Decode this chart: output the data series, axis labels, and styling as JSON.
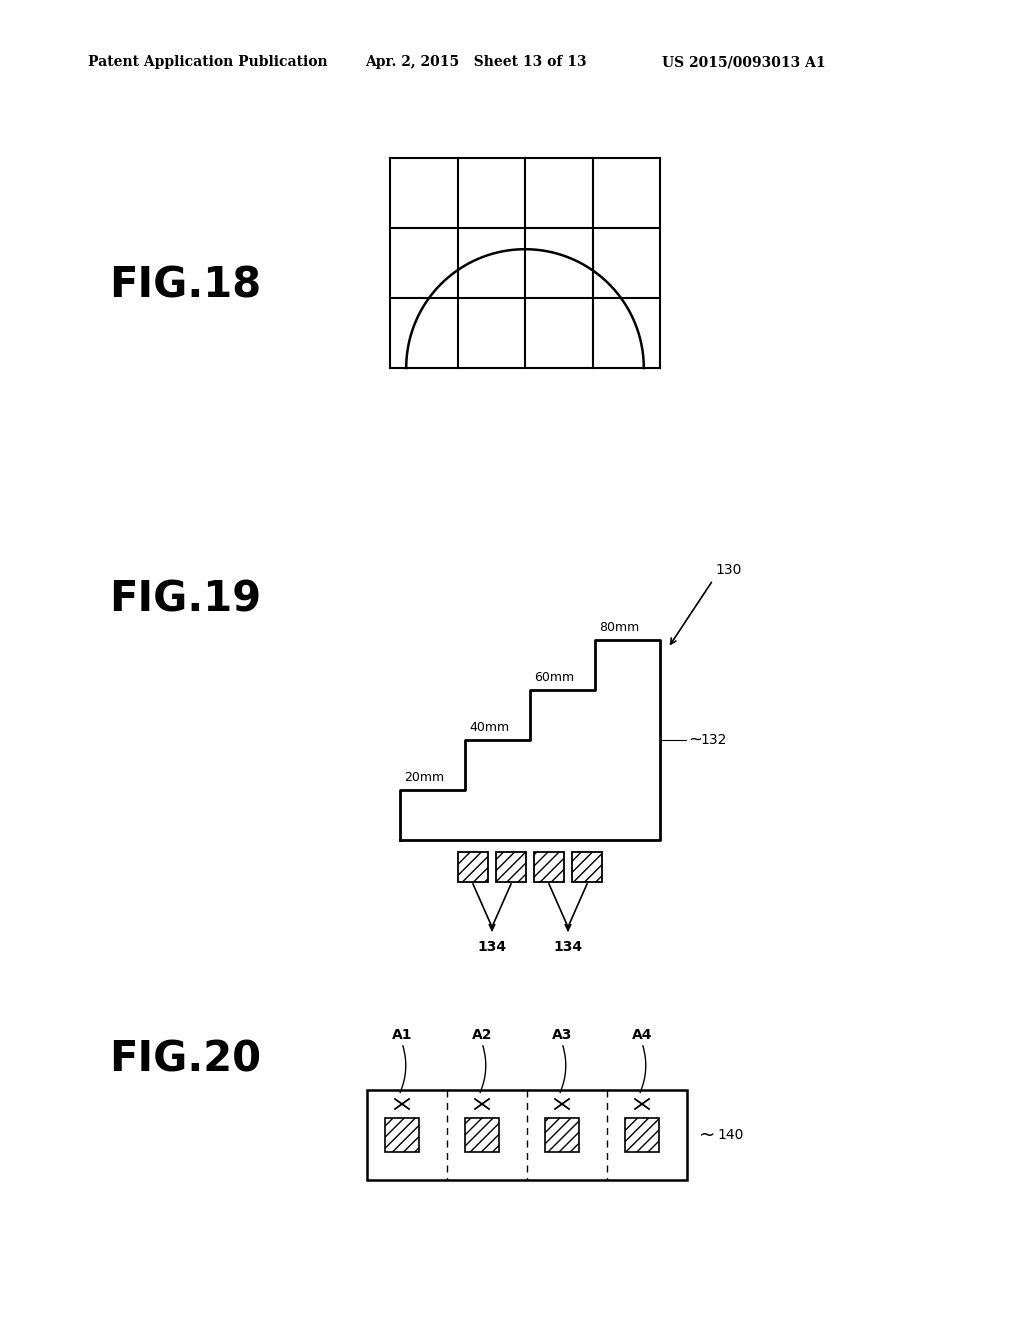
{
  "background": "#ffffff",
  "header_left": "Patent Application Publication",
  "header_mid": "Apr. 2, 2015   Sheet 13 of 13",
  "header_right": "US 2015/0093013 A1",
  "fig18_label": "FIG.18",
  "fig19_label": "FIG.19",
  "fig20_label": "FIG.20",
  "fig18_grid_cols": 4,
  "fig18_grid_rows": 3,
  "line_color": "#000000",
  "hatch_pattern": "///",
  "fig20_labels": [
    "A1",
    "A2",
    "A3",
    "A4"
  ],
  "fig19_step_labels": [
    "20mm",
    "40mm",
    "60mm",
    "80mm"
  ],
  "fig19_ref130": "130",
  "fig19_ref132": "132",
  "fig19_ref134": "134",
  "fig20_ref140": "140"
}
